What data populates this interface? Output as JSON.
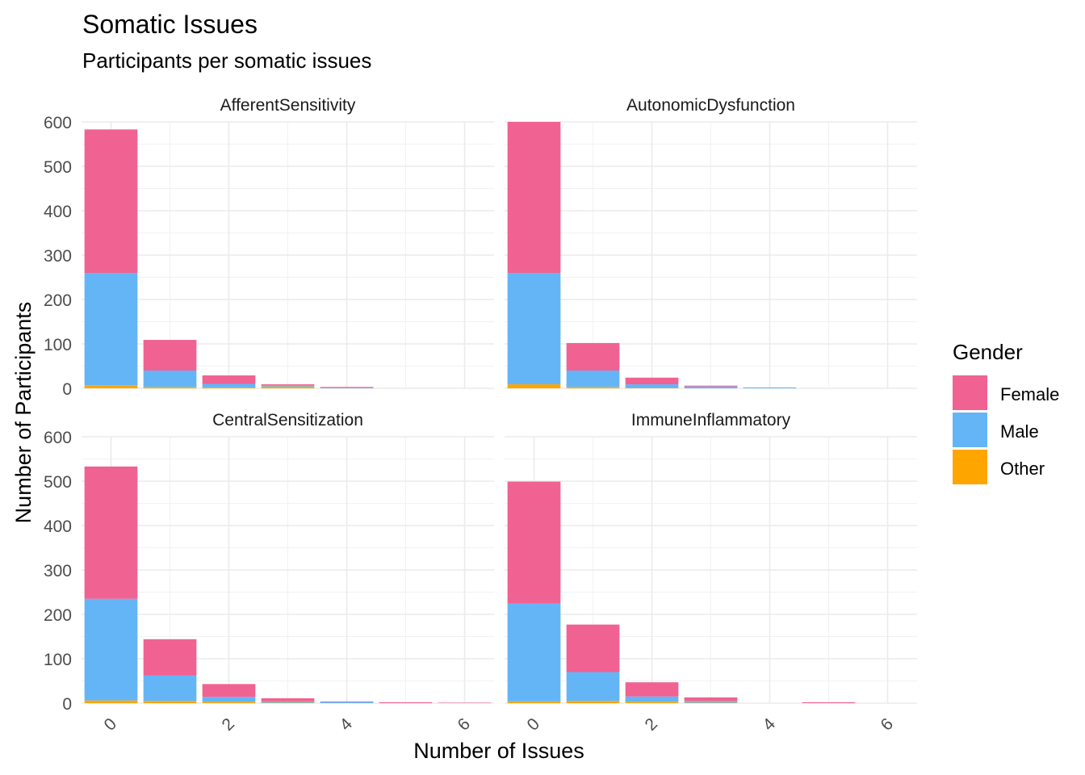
{
  "chart_data": {
    "type": "bar",
    "stacked": true,
    "title": "Somatic Issues",
    "subtitle": "Participants per somatic issues",
    "xlabel": "Number of Issues",
    "ylabel": "Number of Participants",
    "xlim": [
      -0.5,
      6.5
    ],
    "ylim": [
      0,
      600
    ],
    "x_ticks": [
      0,
      2,
      4,
      6
    ],
    "y_ticks": [
      0,
      100,
      200,
      300,
      400,
      500,
      600
    ],
    "grid": true,
    "legend": {
      "title": "Gender",
      "position": "right",
      "entries": [
        "Female",
        "Male",
        "Other"
      ]
    },
    "colors": {
      "Female": "#F06292",
      "Male": "#64B5F6",
      "Other": "#FFA500"
    },
    "panels": [
      {
        "name": "AfferentSensitivity",
        "x": [
          0,
          1,
          2,
          3,
          4,
          5,
          6
        ],
        "series": [
          {
            "name": "Other",
            "values": [
              7,
              3,
              2,
              4,
              0,
              0,
              0
            ]
          },
          {
            "name": "Male",
            "values": [
              253,
              37,
              8,
              2,
              1,
              0,
              0
            ]
          },
          {
            "name": "Female",
            "values": [
              323,
              69,
              19,
              3,
              2,
              0,
              0
            ]
          }
        ]
      },
      {
        "name": "AutonomicDysfunction",
        "x": [
          0,
          1,
          2,
          3,
          4,
          5,
          6
        ],
        "series": [
          {
            "name": "Other",
            "values": [
              9,
              3,
              1,
              0,
              0,
              0,
              0
            ]
          },
          {
            "name": "Male",
            "values": [
              251,
              37,
              8,
              4,
              2,
              0,
              0
            ]
          },
          {
            "name": "Female",
            "values": [
              340,
              62,
              15,
              2,
              0,
              0,
              0
            ]
          }
        ]
      },
      {
        "name": "CentralSensitization",
        "x": [
          0,
          1,
          2,
          3,
          4,
          5,
          6
        ],
        "series": [
          {
            "name": "Other",
            "values": [
              6,
              5,
              3,
              1,
              0,
              0,
              0
            ]
          },
          {
            "name": "Male",
            "values": [
              229,
              57,
              11,
              3,
              3,
              0,
              0
            ]
          },
          {
            "name": "Female",
            "values": [
              298,
              82,
              29,
              7,
              1,
              2,
              1
            ]
          }
        ]
      },
      {
        "name": "ImmuneInflammatory",
        "x": [
          0,
          1,
          2,
          3,
          4,
          5,
          6
        ],
        "series": [
          {
            "name": "Other",
            "values": [
              4,
              5,
              3,
              1,
              0,
              0,
              0
            ]
          },
          {
            "name": "Male",
            "values": [
              220,
              65,
              12,
              4,
              0,
              0,
              0
            ]
          },
          {
            "name": "Female",
            "values": [
              275,
              107,
              32,
              8,
              0,
              2,
              0
            ]
          }
        ]
      }
    ]
  }
}
